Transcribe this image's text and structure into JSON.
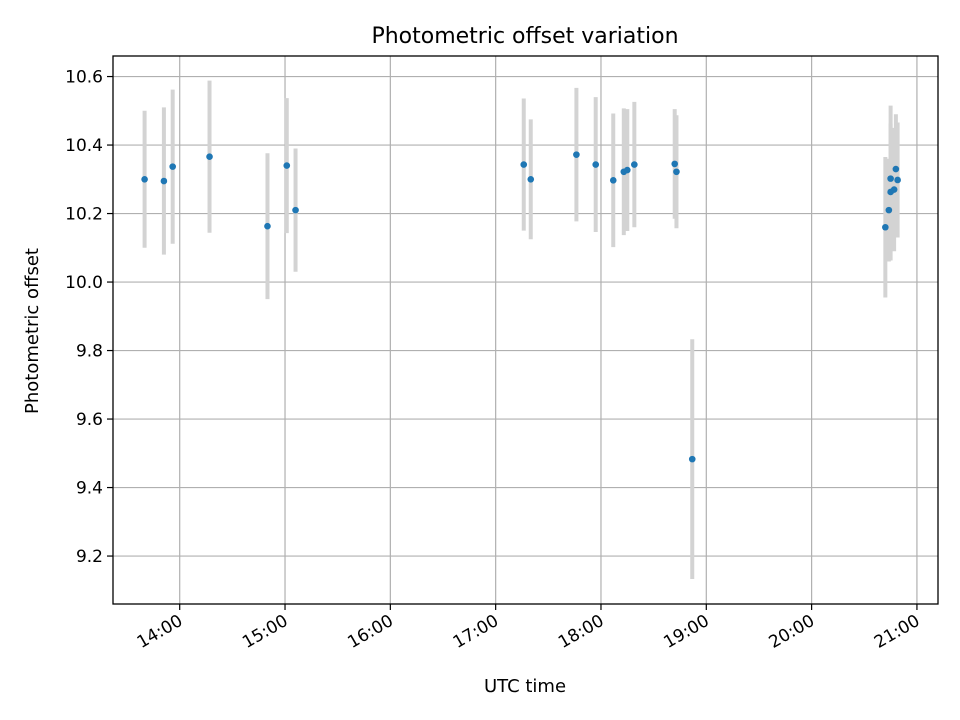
{
  "chart_data": {
    "type": "scatter",
    "title": "Photometric offset variation",
    "xlabel": "UTC time",
    "ylabel": "Photometric offset",
    "x_unit": "UTC time (HH:MM)",
    "xlim": [
      "13:22",
      "21:12"
    ],
    "ylim": [
      9.06,
      10.66
    ],
    "xticks": [
      "14:00",
      "15:00",
      "16:00",
      "17:00",
      "18:00",
      "19:00",
      "20:00",
      "21:00"
    ],
    "yticks": [
      "9.2",
      "9.4",
      "9.6",
      "9.8",
      "10.0",
      "10.2",
      "10.4",
      "10.6"
    ],
    "grid": true,
    "legend": "none",
    "colors": {
      "point": "#1f77b4",
      "errorbar": "#d3d3d3"
    },
    "points": [
      {
        "time": "13:40",
        "y": 10.3,
        "err": 0.2
      },
      {
        "time": "13:51",
        "y": 10.295,
        "err": 0.215
      },
      {
        "time": "13:56",
        "y": 10.337,
        "err": 0.225
      },
      {
        "time": "14:17",
        "y": 10.366,
        "err": 0.222
      },
      {
        "time": "14:50",
        "y": 10.163,
        "err": 0.213
      },
      {
        "time": "15:01",
        "y": 10.34,
        "err": 0.197
      },
      {
        "time": "15:06",
        "y": 10.21,
        "err": 0.18
      },
      {
        "time": "17:16",
        "y": 10.343,
        "err": 0.193
      },
      {
        "time": "17:20",
        "y": 10.3,
        "err": 0.175
      },
      {
        "time": "17:46",
        "y": 10.372,
        "err": 0.195
      },
      {
        "time": "17:57",
        "y": 10.343,
        "err": 0.197
      },
      {
        "time": "18:07",
        "y": 10.297,
        "err": 0.195
      },
      {
        "time": "18:13",
        "y": 10.322,
        "err": 0.185
      },
      {
        "time": "18:15",
        "y": 10.327,
        "err": 0.178
      },
      {
        "time": "18:19",
        "y": 10.343,
        "err": 0.183
      },
      {
        "time": "18:42",
        "y": 10.345,
        "err": 0.16
      },
      {
        "time": "18:43",
        "y": 10.322,
        "err": 0.165
      },
      {
        "time": "18:52",
        "y": 9.483,
        "err": 0.35
      },
      {
        "time": "20:42",
        "y": 10.16,
        "err": 0.205
      },
      {
        "time": "20:44",
        "y": 10.21,
        "err": 0.15
      },
      {
        "time": "20:45",
        "y": 10.263,
        "err": 0.2
      },
      {
        "time": "20:45",
        "y": 10.302,
        "err": 0.213
      },
      {
        "time": "20:47",
        "y": 10.27,
        "err": 0.18
      },
      {
        "time": "20:48",
        "y": 10.33,
        "err": 0.16
      },
      {
        "time": "20:49",
        "y": 10.298,
        "err": 0.168
      }
    ]
  }
}
